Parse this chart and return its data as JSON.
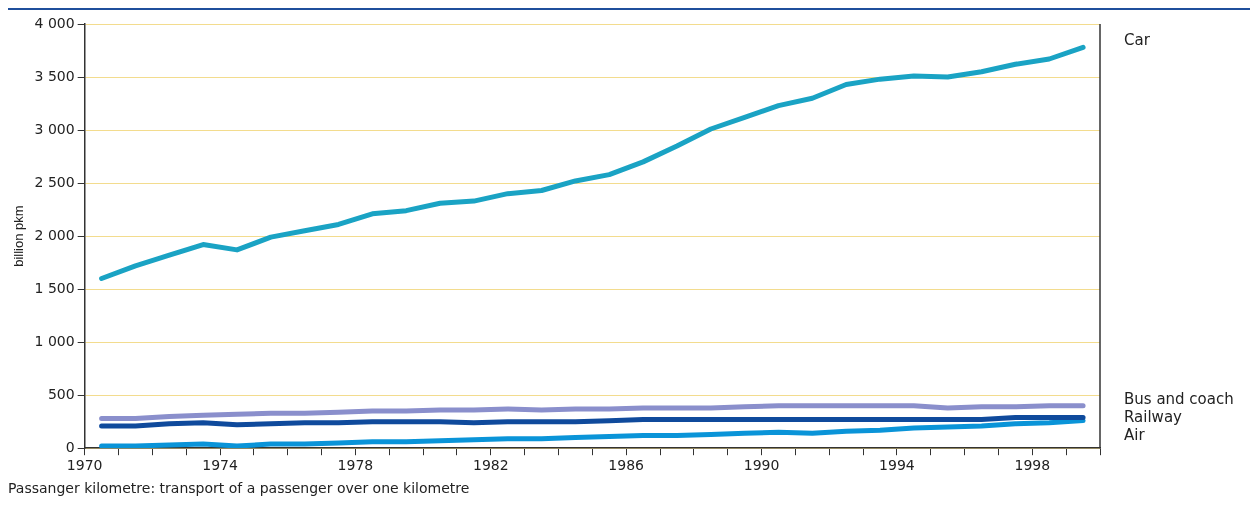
{
  "chart_data": {
    "type": "line",
    "ylabel": "billion pkm",
    "annotations": [
      "Passanger kilometre: transport of a passenger over one kilometre"
    ],
    "x": [
      1970.5,
      1971.5,
      1972.5,
      1973.5,
      1974.5,
      1975.5,
      1976.5,
      1977.5,
      1978.5,
      1979.5,
      1980.5,
      1981.5,
      1982.5,
      1983.5,
      1984.5,
      1985.5,
      1986.5,
      1987.5,
      1988.5,
      1989.5,
      1990.5,
      1991.5,
      1992.5,
      1993.5,
      1994.5,
      1995.5,
      1996.5,
      1997.5,
      1998.5,
      1999.5
    ],
    "series": [
      {
        "name": "Car",
        "color": "#1aa3c4",
        "values": [
          1600,
          1720,
          1820,
          1920,
          1870,
          1990,
          2050,
          2110,
          2210,
          2240,
          2310,
          2330,
          2400,
          2430,
          2520,
          2580,
          2700,
          2850,
          3010,
          3120,
          3230,
          3300,
          3430,
          3480,
          3510,
          3500,
          3550,
          3620,
          3670,
          3780
        ]
      },
      {
        "name": "Bus and coach",
        "color": "#8a8fcc",
        "values": [
          280,
          280,
          300,
          310,
          320,
          330,
          330,
          340,
          350,
          350,
          360,
          360,
          370,
          360,
          370,
          370,
          380,
          380,
          380,
          390,
          400,
          400,
          400,
          400,
          400,
          380,
          390,
          390,
          400,
          400
        ]
      },
      {
        "name": "Railway",
        "color": "#0f4a9c",
        "values": [
          210,
          210,
          230,
          240,
          220,
          230,
          240,
          240,
          250,
          250,
          250,
          240,
          250,
          250,
          250,
          260,
          270,
          270,
          270,
          270,
          270,
          270,
          270,
          270,
          270,
          270,
          270,
          290,
          290,
          290
        ]
      },
      {
        "name": "Air",
        "color": "#0a94d8",
        "values": [
          20,
          20,
          30,
          40,
          20,
          40,
          40,
          50,
          60,
          60,
          70,
          80,
          90,
          90,
          100,
          110,
          120,
          120,
          130,
          140,
          150,
          140,
          160,
          170,
          190,
          200,
          210,
          230,
          240,
          260
        ]
      }
    ],
    "xlim": [
      1970,
      2000
    ],
    "xticks": [
      1970,
      {
        "value": 1971,
        "label": null
      },
      {
        "value": 1972,
        "label": null
      },
      {
        "value": 1973,
        "label": null
      },
      1974,
      {
        "value": 1975,
        "label": null
      },
      {
        "value": 1976,
        "label": null
      },
      {
        "value": 1977,
        "label": null
      },
      1978,
      {
        "value": 1979,
        "label": null
      },
      {
        "value": 1980,
        "label": null
      },
      {
        "value": 1981,
        "label": null
      },
      1982,
      {
        "value": 1983,
        "label": null
      },
      {
        "value": 1984,
        "label": null
      },
      {
        "value": 1985,
        "label": null
      },
      1986,
      {
        "value": 1987,
        "label": null
      },
      {
        "value": 1988,
        "label": null
      },
      {
        "value": 1989,
        "label": null
      },
      1990,
      {
        "value": 1991,
        "label": null
      },
      {
        "value": 1992,
        "label": null
      },
      {
        "value": 1993,
        "label": null
      },
      1994,
      {
        "value": 1995,
        "label": null
      },
      {
        "value": 1996,
        "label": null
      },
      {
        "value": 1997,
        "label": null
      },
      1998,
      {
        "value": 1999,
        "label": null
      },
      {
        "value": 2000,
        "label": null
      }
    ],
    "ylim": [
      0,
      4000
    ],
    "yticks": [
      0,
      500,
      {
        "value": 1000,
        "label": "1 000"
      },
      {
        "value": 1500,
        "label": "1 500"
      },
      {
        "value": 2000,
        "label": "2 000"
      },
      {
        "value": 2500,
        "label": "2 500"
      },
      {
        "value": 3000,
        "label": "3 000"
      },
      {
        "value": 3500,
        "label": "3 500"
      },
      {
        "value": 4000,
        "label": "4 000"
      }
    ],
    "grid": "y",
    "legend": false,
    "marker": "none",
    "line_style": "solid"
  }
}
